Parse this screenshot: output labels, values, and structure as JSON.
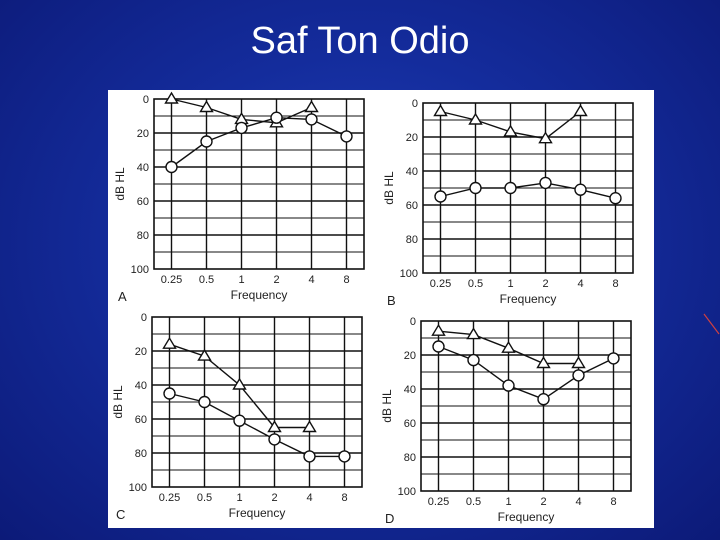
{
  "slide": {
    "title": "Saf Ton Odio"
  },
  "chart_data": [
    {
      "type": "line",
      "panel": "A",
      "x": [
        "0.25",
        "0.5",
        "1",
        "2",
        "4",
        "8"
      ],
      "xlabel": "Frequency",
      "ylabel": "dB HL",
      "yticks": [
        "0",
        "20",
        "40",
        "60",
        "80",
        "100"
      ],
      "ylim": [
        0,
        100
      ],
      "y_inverted": true,
      "series": [
        {
          "marker": "triangle",
          "values": [
            0,
            5,
            12,
            14,
            5,
            null
          ]
        },
        {
          "marker": "circle",
          "values": [
            40,
            25,
            17,
            11,
            12,
            22
          ]
        }
      ]
    },
    {
      "type": "line",
      "panel": "B",
      "x": [
        "0.25",
        "0.5",
        "1",
        "2",
        "4",
        "8"
      ],
      "xlabel": "Frequency",
      "ylabel": "dB HL",
      "yticks": [
        "0",
        "20",
        "40",
        "60",
        "80",
        "100"
      ],
      "ylim": [
        0,
        100
      ],
      "y_inverted": true,
      "series": [
        {
          "marker": "triangle",
          "values": [
            5,
            10,
            17,
            21,
            5,
            null
          ]
        },
        {
          "marker": "circle",
          "values": [
            55,
            50,
            50,
            47,
            51,
            56
          ]
        }
      ]
    },
    {
      "type": "line",
      "panel": "C",
      "x": [
        "0.25",
        "0.5",
        "1",
        "2",
        "4",
        "8"
      ],
      "xlabel": "Frequency",
      "ylabel": "dB HL",
      "yticks": [
        "0",
        "20",
        "40",
        "60",
        "80",
        "100"
      ],
      "ylim": [
        0,
        100
      ],
      "y_inverted": true,
      "series": [
        {
          "marker": "triangle",
          "values": [
            16,
            23,
            40,
            65,
            65,
            null
          ]
        },
        {
          "marker": "circle",
          "values": [
            45,
            50,
            61,
            72,
            82,
            82
          ]
        }
      ]
    },
    {
      "type": "line",
      "panel": "D",
      "x": [
        "0.25",
        "0.5",
        "1",
        "2",
        "4",
        "8"
      ],
      "xlabel": "Frequency",
      "ylabel": "dB HL",
      "yticks": [
        "0",
        "20",
        "40",
        "60",
        "80",
        "100"
      ],
      "ylim": [
        0,
        100
      ],
      "y_inverted": true,
      "series": [
        {
          "marker": "triangle",
          "values": [
            6,
            8,
            16,
            25,
            25,
            null
          ]
        },
        {
          "marker": "circle",
          "values": [
            15,
            23,
            38,
            46,
            32,
            22
          ]
        }
      ]
    }
  ]
}
